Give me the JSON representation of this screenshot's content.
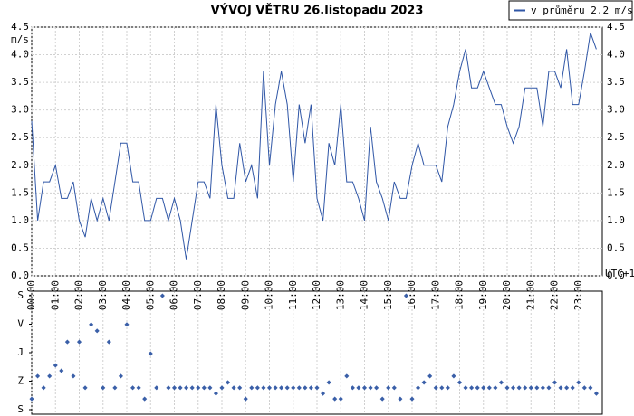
{
  "chart_data": [
    {
      "type": "line",
      "title": "VÝVOJ VĚTRU  26.listopadu 2023",
      "ylabel": "m/s",
      "xlabel": "UTC+1",
      "xlim": [
        0,
        24
      ],
      "xticks": [
        {
          "value": 0,
          "label": "00:00"
        },
        {
          "value": 1,
          "label": "01:00"
        },
        {
          "value": 2,
          "label": "02:00"
        },
        {
          "value": 3,
          "label": "03:00"
        },
        {
          "value": 4,
          "label": "04:00"
        },
        {
          "value": 5,
          "label": "05:00"
        },
        {
          "value": 6,
          "label": "06:00"
        },
        {
          "value": 7,
          "label": "07:00"
        },
        {
          "value": 8,
          "label": "08:00"
        },
        {
          "value": 9,
          "label": "09:00"
        },
        {
          "value": 10,
          "label": "10:00"
        },
        {
          "value": 11,
          "label": "11:00"
        },
        {
          "value": 12,
          "label": "12:00"
        },
        {
          "value": 13,
          "label": "13:00"
        },
        {
          "value": 14,
          "label": "14:00"
        },
        {
          "value": 15,
          "label": "15:00"
        },
        {
          "value": 16,
          "label": "16:00"
        },
        {
          "value": 17,
          "label": "17:00"
        },
        {
          "value": 18,
          "label": "18:00"
        },
        {
          "value": 19,
          "label": "19:00"
        },
        {
          "value": 20,
          "label": "20:00"
        },
        {
          "value": 21,
          "label": "21:00"
        },
        {
          "value": 22,
          "label": "22:00"
        },
        {
          "value": 23,
          "label": "23:00"
        }
      ],
      "ylim": [
        0,
        4.5
      ],
      "yticks": [
        {
          "value": 0,
          "label": "0.0"
        },
        0.5,
        {
          "value": 1,
          "label": "1.0"
        },
        1.5,
        {
          "value": 2,
          "label": "2.0"
        },
        2.5,
        {
          "value": 3,
          "label": "3.0"
        },
        3.5,
        {
          "value": 4,
          "label": "4.0"
        },
        4.5
      ],
      "grid": true,
      "legend": "top-right",
      "x": [
        0,
        0.25,
        0.5,
        0.75,
        1,
        1.25,
        1.5,
        1.75,
        2,
        2.25,
        2.5,
        2.75,
        3,
        3.25,
        3.5,
        3.75,
        4,
        4.25,
        4.5,
        4.75,
        5,
        5.25,
        5.5,
        5.75,
        6,
        6.25,
        6.5,
        6.75,
        7,
        7.25,
        7.5,
        7.75,
        8,
        8.25,
        8.5,
        8.75,
        9,
        9.25,
        9.5,
        9.75,
        10,
        10.25,
        10.5,
        10.75,
        11,
        11.25,
        11.5,
        11.75,
        12,
        12.25,
        12.5,
        12.75,
        13,
        13.25,
        13.5,
        13.75,
        14,
        14.25,
        14.5,
        14.75,
        15,
        15.25,
        15.5,
        15.75,
        16,
        16.25,
        16.5,
        16.75,
        17,
        17.25,
        17.5,
        17.75,
        18,
        18.25,
        18.5,
        18.75,
        19,
        19.25,
        19.5,
        19.75,
        20,
        20.25,
        20.5,
        20.75,
        21,
        21.25,
        21.5,
        21.75,
        22,
        22.25,
        22.5,
        22.75,
        23,
        23.25,
        23.5,
        23.75
      ],
      "series": [
        {
          "name": "v průměru 2.2 m/s",
          "color": "#2f56a6",
          "values": [
            2.8,
            1.0,
            1.7,
            1.7,
            2.0,
            1.4,
            1.4,
            1.7,
            1.0,
            0.7,
            1.4,
            1.0,
            1.4,
            1.0,
            1.7,
            2.4,
            2.4,
            1.7,
            1.7,
            1.0,
            1.0,
            1.4,
            1.4,
            1.0,
            1.4,
            1.0,
            0.3,
            1.0,
            1.7,
            1.7,
            1.4,
            3.1,
            2.0,
            1.4,
            1.4,
            2.4,
            1.7,
            2.0,
            1.4,
            3.7,
            2.0,
            3.1,
            3.7,
            3.1,
            1.7,
            3.1,
            2.4,
            3.1,
            1.4,
            1.0,
            2.4,
            2.0,
            3.1,
            1.7,
            1.7,
            1.4,
            1.0,
            2.7,
            1.7,
            1.4,
            1.0,
            1.7,
            1.4,
            1.4,
            2.0,
            2.4,
            2.0,
            2.0,
            2.0,
            1.7,
            2.7,
            3.1,
            3.7,
            4.1,
            3.4,
            3.4,
            3.7,
            3.4,
            3.1,
            3.1,
            2.7,
            2.4,
            2.7,
            3.4,
            3.4,
            3.4,
            2.7,
            3.7,
            3.7,
            3.4,
            4.1,
            3.1,
            3.1,
            3.7,
            4.4,
            4.1
          ]
        }
      ]
    },
    {
      "type": "scatter",
      "xlim": [
        0,
        24
      ],
      "ylim": [
        0,
        360
      ],
      "y_inverted": true,
      "yticks": [
        {
          "value": 0,
          "label": "S"
        },
        {
          "value": 90,
          "label": "V"
        },
        {
          "value": 180,
          "label": "J"
        },
        {
          "value": 270,
          "label": "Z"
        },
        {
          "value": 360,
          "label": "S"
        }
      ],
      "color": "#3a5fa8",
      "x": [
        0,
        0.25,
        0.5,
        0.75,
        1,
        1.25,
        1.5,
        1.75,
        2,
        2.25,
        2.5,
        2.75,
        3,
        3.25,
        3.5,
        3.75,
        4,
        4.25,
        4.5,
        4.75,
        5,
        5.25,
        5.5,
        5.75,
        6,
        6.25,
        6.5,
        6.75,
        7,
        7.25,
        7.5,
        7.75,
        8,
        8.25,
        8.5,
        8.75,
        9,
        9.25,
        9.5,
        9.75,
        10,
        10.25,
        10.5,
        10.75,
        11,
        11.25,
        11.5,
        11.75,
        12,
        12.25,
        12.5,
        12.75,
        13,
        13.25,
        13.5,
        13.75,
        14,
        14.25,
        14.5,
        14.75,
        15,
        15.25,
        15.5,
        15.75,
        16,
        16.25,
        16.5,
        16.75,
        17,
        17.25,
        17.5,
        17.75,
        18,
        18.25,
        18.5,
        18.75,
        19,
        19.25,
        19.5,
        19.75,
        20,
        20.25,
        20.5,
        20.75,
        21,
        21.25,
        21.5,
        21.75,
        22,
        22.25,
        22.5,
        22.75,
        23,
        23.25,
        23.5,
        23.75
      ],
      "values": [
        326,
        254,
        291,
        254,
        220,
        237,
        146,
        254,
        146,
        291,
        91,
        111,
        291,
        146,
        291,
        254,
        91,
        291,
        291,
        326,
        183,
        291,
        0,
        291,
        291,
        291,
        291,
        291,
        291,
        291,
        291,
        309,
        291,
        274,
        291,
        291,
        326,
        291,
        291,
        291,
        291,
        291,
        291,
        291,
        291,
        291,
        291,
        291,
        291,
        309,
        274,
        326,
        326,
        254,
        291,
        291,
        291,
        291,
        291,
        326,
        291,
        291,
        326,
        0,
        326,
        291,
        274,
        254,
        291,
        291,
        291,
        254,
        274,
        291,
        291,
        291,
        291,
        291,
        291,
        274,
        291,
        291,
        291,
        291,
        291,
        291,
        291,
        291,
        274,
        291,
        291,
        291,
        274,
        291,
        291,
        309
      ]
    }
  ]
}
